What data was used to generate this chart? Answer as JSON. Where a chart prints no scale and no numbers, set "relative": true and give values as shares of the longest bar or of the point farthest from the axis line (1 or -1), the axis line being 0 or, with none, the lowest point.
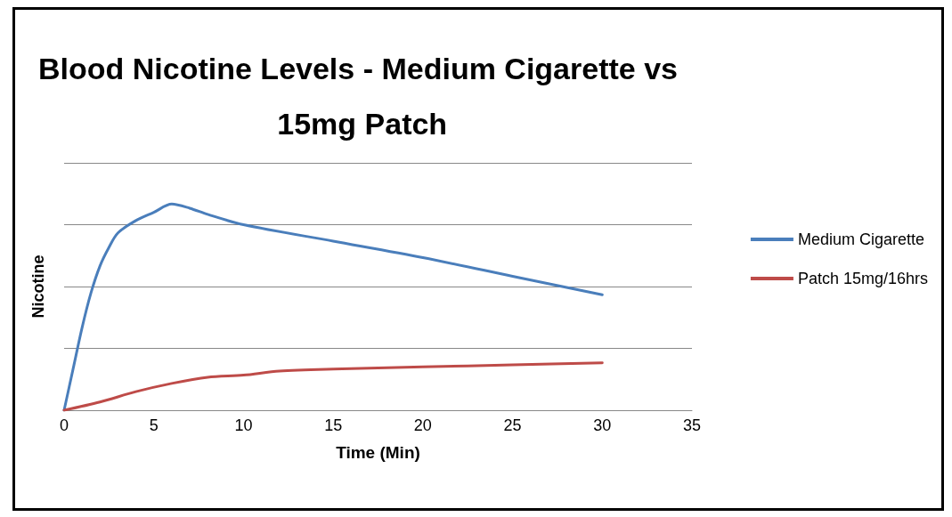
{
  "chart_data": {
    "type": "line",
    "title": "Blood Nicotine Levels - Medium Cigarette vs 15mg Patch",
    "xlabel": "Time (Min)",
    "ylabel": "Nicotine",
    "relative": true,
    "xlim": [
      0,
      35
    ],
    "xticks": [
      0,
      5,
      10,
      15,
      20,
      25,
      30,
      35
    ],
    "grid": "y",
    "legend": "right",
    "marker": "none",
    "series": [
      {
        "name": "Medium Cigarette",
        "color": "#4a7ebb",
        "x": [
          0,
          0.5,
          1,
          1.5,
          2,
          2.5,
          3,
          4,
          5,
          6,
          7,
          8,
          10,
          15,
          20,
          25,
          30
        ],
        "values": [
          0,
          0.2,
          0.4,
          0.57,
          0.7,
          0.79,
          0.86,
          0.92,
          0.96,
          1,
          0.98,
          0.95,
          0.9,
          0.82,
          0.74,
          0.65,
          0.56
        ]
      },
      {
        "name": "Patch 15mg/16hrs",
        "color": "#be4b48",
        "x": [
          0,
          2,
          4,
          6,
          8,
          10,
          12,
          15,
          20,
          25,
          30
        ],
        "values": [
          0,
          0.04,
          0.09,
          0.13,
          0.16,
          0.17,
          0.19,
          0.2,
          0.21,
          0.22,
          0.23
        ]
      }
    ]
  }
}
